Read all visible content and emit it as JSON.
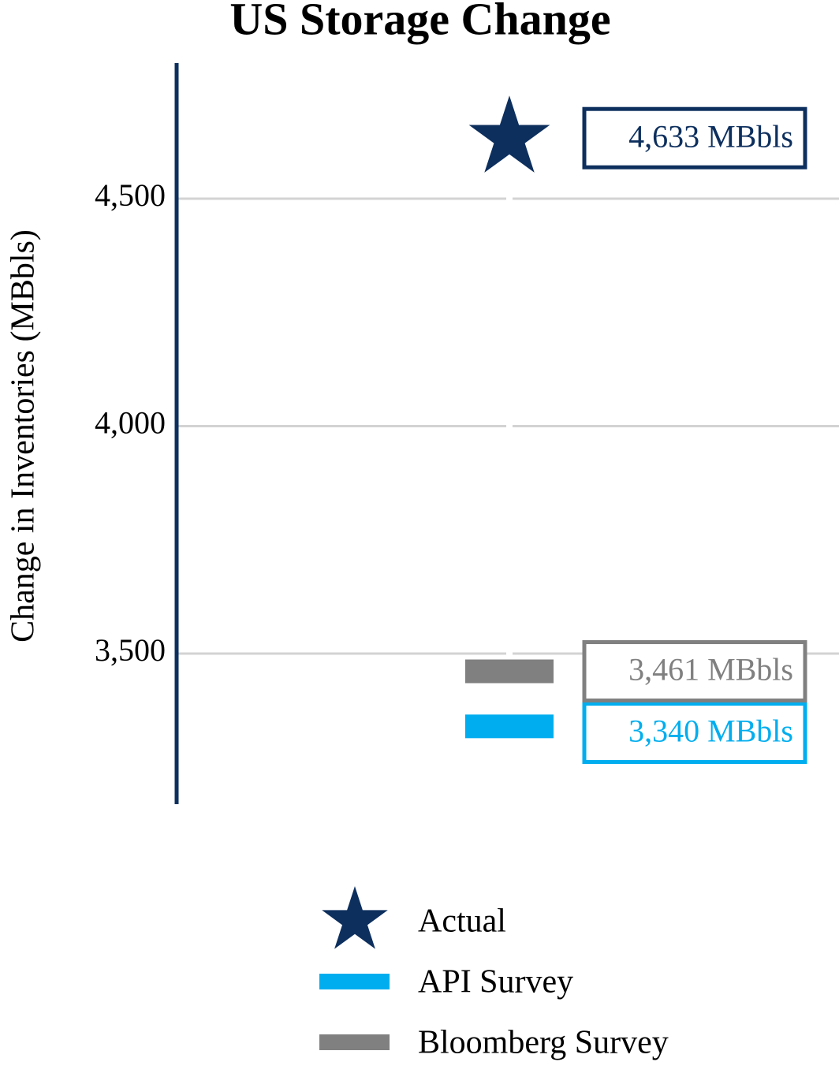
{
  "chart_data": {
    "type": "scatter",
    "title": "US Storage Change",
    "ylabel": "Change in Inventories (MBbls)",
    "ylim": [
      3169,
      4798
    ],
    "yticks": [
      {
        "value": 3500,
        "label": "3,500"
      },
      {
        "value": 4000,
        "label": "4,000"
      },
      {
        "value": 4500,
        "label": "4,500"
      }
    ],
    "grid": true,
    "series": [
      {
        "name": "Actual",
        "color": "#0d2f5e",
        "marker": "star",
        "values": [
          4633
        ],
        "value_labels": [
          "4,633 MBbls"
        ]
      },
      {
        "name": "API Survey",
        "color": "#00aeef",
        "marker": "dash",
        "values": [
          3340
        ],
        "value_labels": [
          "3,340 MBbls"
        ]
      },
      {
        "name": "Bloomberg Survey",
        "color": "#808080",
        "marker": "dash",
        "values": [
          3461
        ],
        "value_labels": [
          "3,461 MBbls"
        ]
      }
    ]
  }
}
